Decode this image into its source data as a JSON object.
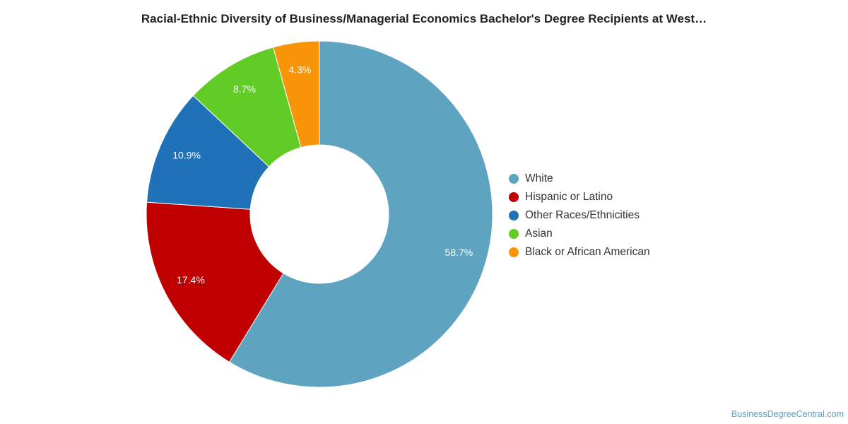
{
  "chart_data": {
    "type": "pie",
    "title": "Racial-Ethnic Diversity of Business/Managerial Economics Bachelor's Degree Recipients at West…",
    "donut": true,
    "legend_position": "right",
    "slices": [
      {
        "name": "White",
        "value": 58.7,
        "label": "58.7%",
        "color": "#5ea3c0"
      },
      {
        "name": "Hispanic or Latino",
        "value": 17.4,
        "label": "17.4%",
        "color": "#c00000"
      },
      {
        "name": "Other Races/Ethnicities",
        "value": 10.9,
        "label": "10.9%",
        "color": "#1f72b8"
      },
      {
        "name": "Asian",
        "value": 8.7,
        "label": "8.7%",
        "color": "#62cc27"
      },
      {
        "name": "Black or African American",
        "value": 4.3,
        "label": "4.3%",
        "color": "#f79408"
      }
    ]
  },
  "watermark": "BusinessDegreeCentral.com"
}
